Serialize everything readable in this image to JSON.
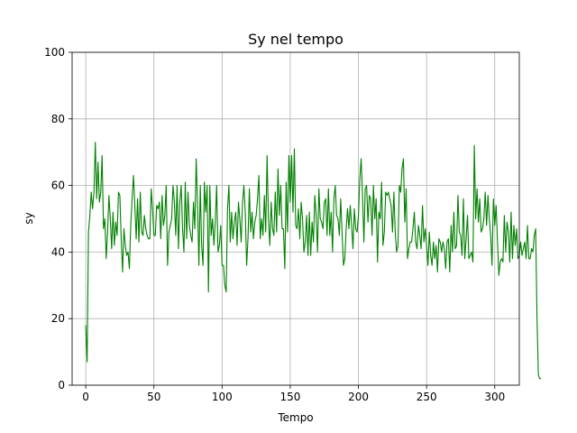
{
  "chart_data": {
    "type": "line",
    "title": "Sy nel tempo",
    "xlabel": "Tempo",
    "ylabel": "sy",
    "xlim": [
      -10,
      318
    ],
    "ylim": [
      0,
      100
    ],
    "xticks": [
      0,
      50,
      100,
      150,
      200,
      250,
      300
    ],
    "yticks": [
      0,
      20,
      40,
      60,
      80,
      100
    ],
    "grid": true,
    "line_color": "#008000",
    "series": [
      {
        "values": [
          18,
          7,
          46,
          51,
          58,
          53,
          58,
          73,
          56,
          67,
          55,
          58,
          69,
          47,
          50,
          38,
          46,
          57,
          50,
          41,
          52,
          42,
          49,
          45,
          58,
          57,
          44,
          34,
          47,
          42,
          39,
          40,
          35,
          48,
          56,
          63,
          54,
          44,
          56,
          43,
          58,
          46,
          45,
          51,
          47,
          45,
          44,
          44,
          59,
          53,
          45,
          45,
          54,
          53,
          55,
          44,
          57,
          48,
          51,
          60,
          36,
          46,
          48,
          50,
          60,
          55,
          45,
          60,
          41,
          55,
          60,
          47,
          40,
          61,
          44,
          58,
          48,
          45,
          43,
          55,
          47,
          68,
          54,
          36,
          60,
          42,
          36,
          61,
          52,
          60,
          28,
          60,
          45,
          50,
          42,
          49,
          60,
          40,
          42,
          48,
          36,
          36,
          30,
          28,
          53,
          60,
          43,
          52,
          44,
          49,
          52,
          42,
          55,
          50,
          43,
          55,
          60,
          52,
          36,
          44,
          59,
          46,
          52,
          44,
          49,
          51,
          56,
          63,
          44,
          50,
          45,
          57,
          46,
          69,
          50,
          42,
          55,
          47,
          45,
          58,
          46,
          65,
          51,
          60,
          47,
          47,
          35,
          61,
          46,
          69,
          55,
          69,
          52,
          71,
          48,
          47,
          53,
          44,
          55,
          50,
          40,
          43,
          51,
          39,
          52,
          39,
          49,
          43,
          57,
          51,
          40,
          59,
          50,
          49,
          47,
          55,
          56,
          45,
          59,
          45,
          52,
          40,
          56,
          60,
          51,
          50,
          45,
          56,
          46,
          36,
          38,
          47,
          53,
          47,
          54,
          48,
          41,
          53,
          47,
          46,
          51,
          62,
          68,
          57,
          43,
          59,
          60,
          49,
          57,
          56,
          45,
          60,
          50,
          56,
          37,
          52,
          50,
          61,
          42,
          46,
          58,
          57,
          58,
          56,
          54,
          46,
          58,
          46,
          40,
          42,
          60,
          58,
          65,
          68,
          49,
          59,
          38,
          41,
          43,
          43,
          47,
          52,
          43,
          41,
          48,
          45,
          41,
          54,
          43,
          47,
          42,
          36,
          46,
          39,
          36,
          43,
          38,
          42,
          34,
          44,
          43,
          40,
          43,
          41,
          35,
          43,
          44,
          34,
          48,
          40,
          52,
          41,
          42,
          57,
          46,
          45,
          39,
          56,
          38,
          44,
          51,
          38,
          39,
          40,
          37,
          72,
          50,
          59,
          49,
          56,
          46,
          47,
          50,
          58,
          48,
          57,
          50,
          45,
          36,
          56,
          48,
          54,
          43,
          33,
          37,
          38,
          37,
          51,
          40,
          49,
          46,
          37,
          52,
          38,
          48,
          42,
          47,
          38,
          39,
          43,
          39,
          41,
          43,
          38,
          48,
          38,
          38,
          41,
          40,
          45,
          47,
          20,
          3,
          2,
          2
        ]
      }
    ]
  }
}
